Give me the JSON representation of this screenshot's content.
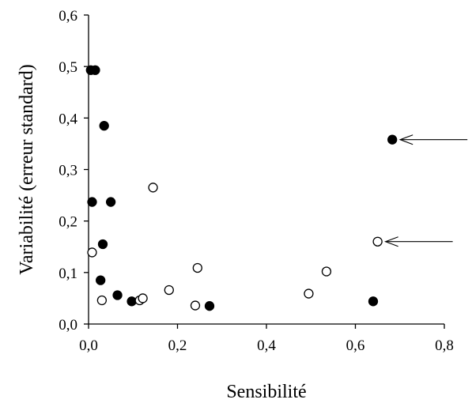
{
  "chart_data": {
    "type": "scatter",
    "title": "",
    "xlabel": "Sensibilité",
    "ylabel": "Variabilité (erreur standard)",
    "xlim": [
      0,
      0.8
    ],
    "ylim": [
      0,
      0.6
    ],
    "x_ticks": [
      "0,0",
      "0,2",
      "0,4",
      "0,6",
      "0,8"
    ],
    "y_ticks": [
      "0,0",
      "0,1",
      "0,2",
      "0,3",
      "0,4",
      "0,5",
      "0,6"
    ],
    "grid": false,
    "legend": "none",
    "series": [
      {
        "marker": "filled-circle",
        "color": "#000000",
        "points": [
          [
            0.005,
            0.493
          ],
          [
            0.015,
            0.493
          ],
          [
            0.035,
            0.385
          ],
          [
            0.008,
            0.237
          ],
          [
            0.05,
            0.237
          ],
          [
            0.032,
            0.155
          ],
          [
            0.027,
            0.085
          ],
          [
            0.065,
            0.056
          ],
          [
            0.097,
            0.044
          ],
          [
            0.272,
            0.035
          ],
          [
            0.64,
            0.044
          ],
          [
            0.683,
            0.358
          ]
        ]
      },
      {
        "marker": "open-circle",
        "color": "#000000",
        "points": [
          [
            0.008,
            0.139
          ],
          [
            0.03,
            0.046
          ],
          [
            0.115,
            0.046
          ],
          [
            0.122,
            0.05
          ],
          [
            0.145,
            0.265
          ],
          [
            0.181,
            0.066
          ],
          [
            0.24,
            0.036
          ],
          [
            0.245,
            0.109
          ],
          [
            0.495,
            0.059
          ],
          [
            0.535,
            0.102
          ],
          [
            0.65,
            0.16
          ]
        ]
      }
    ],
    "annotations": [
      {
        "type": "arrow",
        "target": [
          0.683,
          0.358
        ]
      },
      {
        "type": "arrow",
        "target": [
          0.65,
          0.16
        ]
      }
    ]
  }
}
